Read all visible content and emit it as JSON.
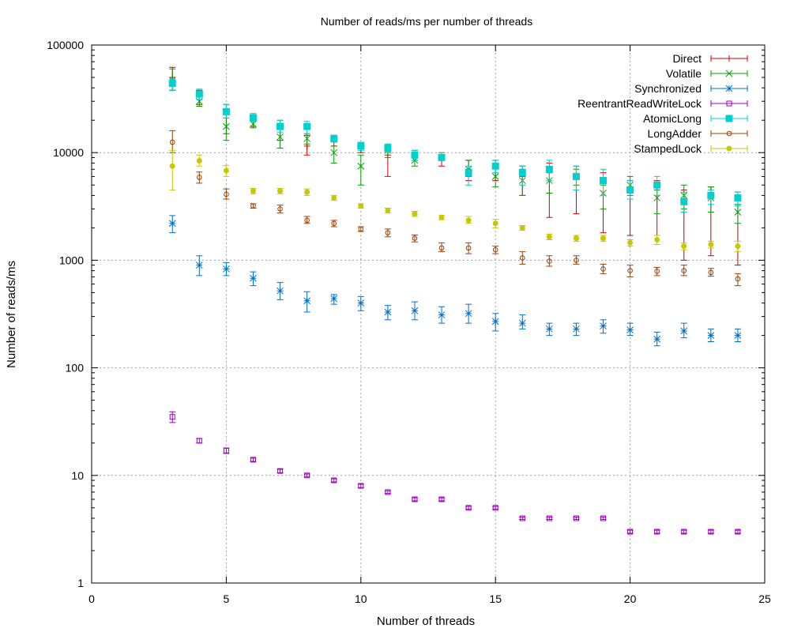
{
  "chart_data": {
    "type": "scatter",
    "title": "Number of reads/ms per number of threads",
    "xlabel": "Number of threads",
    "ylabel": "Number of reads/ms",
    "xlim": [
      0,
      25
    ],
    "ylim": [
      1,
      100000
    ],
    "yscale": "log",
    "grid": true,
    "legend_position": "top-right",
    "x_ticks": [
      "0",
      "5",
      "10",
      "15",
      "20",
      "25"
    ],
    "y_ticks": [
      "1",
      "10",
      "100",
      "1000",
      "10000",
      "100000"
    ],
    "x": [
      3,
      4,
      5,
      6,
      7,
      8,
      9,
      10,
      11,
      12,
      13,
      14,
      15,
      16,
      17,
      18,
      19,
      20,
      21,
      22,
      23,
      24
    ],
    "series": [
      {
        "name": "Direct",
        "color": "#d00000",
        "marker": "plus",
        "values": [
          50000,
          34000,
          24000,
          21000,
          17000,
          11500,
          13500,
          11000,
          9500,
          9000,
          9000,
          7000,
          7200,
          6000,
          6800,
          6000,
          5200,
          4600,
          4800,
          3600,
          4000,
          3800
        ],
        "err_low": [
          38000,
          28000,
          15000,
          17500,
          13000,
          9500,
          11500,
          10000,
          6000,
          8500,
          7500,
          5500,
          5500,
          4000,
          2500,
          2700,
          1800,
          1700,
          1700,
          1000,
          1100,
          900
        ],
        "err_high": [
          62000,
          38000,
          28000,
          23000,
          20000,
          14500,
          14500,
          12000,
          11000,
          10500,
          10000,
          8500,
          8500,
          7500,
          8000,
          7500,
          6500,
          5500,
          5500,
          4500,
          4800,
          4300
        ]
      },
      {
        "name": "Volatile",
        "color": "#00a000",
        "marker": "x",
        "values": [
          47000,
          30000,
          17500,
          18500,
          14000,
          13500,
          10000,
          7500,
          10500,
          8500,
          9000,
          7000,
          6000,
          5500,
          5500,
          6000,
          4200,
          5000,
          3800,
          4000,
          3800,
          2800
        ],
        "err_low": [
          38000,
          27000,
          13000,
          17000,
          11000,
          12000,
          8000,
          5000,
          9000,
          7500,
          8500,
          6000,
          4800,
          4000,
          4200,
          5000,
          3000,
          4000,
          2700,
          3000,
          2800,
          2200
        ],
        "err_high": [
          60000,
          33000,
          21000,
          20000,
          17000,
          15000,
          11500,
          9500,
          12000,
          9500,
          9500,
          8500,
          7500,
          7000,
          6500,
          7000,
          5000,
          6000,
          4500,
          5000,
          4800,
          3300
        ]
      },
      {
        "name": "Synchronized",
        "color": "#0070d0",
        "marker": "star",
        "values": [
          2200,
          900,
          830,
          680,
          520,
          420,
          440,
          400,
          330,
          340,
          310,
          320,
          270,
          260,
          230,
          230,
          245,
          225,
          185,
          220,
          200,
          200
        ],
        "err_low": [
          1800,
          720,
          720,
          580,
          430,
          330,
          390,
          340,
          280,
          280,
          260,
          260,
          220,
          230,
          200,
          200,
          210,
          200,
          160,
          190,
          175,
          175
        ],
        "err_high": [
          2600,
          1100,
          950,
          780,
          620,
          510,
          480,
          460,
          380,
          410,
          370,
          390,
          320,
          310,
          260,
          260,
          280,
          260,
          215,
          260,
          230,
          230
        ]
      },
      {
        "name": "ReentrantReadWriteLock",
        "color": "#a000c0",
        "marker": "square",
        "values": [
          35,
          21,
          17,
          14,
          11,
          10,
          9,
          8,
          7,
          6,
          6,
          5,
          5,
          4,
          4,
          4,
          4,
          3,
          3,
          3,
          3,
          3
        ],
        "err_low": [
          31,
          20,
          16,
          13.5,
          10.6,
          9.7,
          8.7,
          7.7,
          6.8,
          5.8,
          5.8,
          4.85,
          4.85,
          3.9,
          3.9,
          3.9,
          3.9,
          2.9,
          2.9,
          2.9,
          2.9,
          2.9
        ],
        "err_high": [
          39,
          22,
          18,
          14.5,
          11.4,
          10.3,
          9.3,
          8.3,
          7.2,
          6.2,
          6.2,
          5.15,
          5.15,
          4.1,
          4.1,
          4.1,
          4.1,
          3.1,
          3.1,
          3.1,
          3.1,
          3.1
        ]
      },
      {
        "name": "AtomicLong",
        "color": "#00d0d0",
        "marker": "filled-square",
        "values": [
          44000,
          35000,
          24000,
          21000,
          17500,
          17500,
          13500,
          11500,
          11000,
          9500,
          9000,
          6500,
          7500,
          6500,
          7000,
          6000,
          5500,
          4500,
          5000,
          3500,
          4000,
          3800
        ],
        "err_low": [
          38000,
          31000,
          21000,
          19500,
          15500,
          15000,
          12500,
          10500,
          10000,
          8500,
          8500,
          5000,
          6500,
          5000,
          5500,
          4500,
          4000,
          3700,
          4000,
          2800,
          3300,
          3200
        ],
        "err_high": [
          48000,
          39000,
          28000,
          23000,
          20000,
          19500,
          14500,
          12500,
          12000,
          10500,
          10000,
          7500,
          8500,
          7500,
          8500,
          7500,
          7000,
          5500,
          6000,
          4300,
          4500,
          4300
        ]
      },
      {
        "name": "LongAdder",
        "color": "#a04000",
        "marker": "circle",
        "values": [
          12500,
          5900,
          4100,
          3200,
          3000,
          2350,
          2200,
          1950,
          1800,
          1600,
          1300,
          1300,
          1250,
          1050,
          980,
          1000,
          830,
          800,
          790,
          800,
          770,
          670
        ],
        "err_low": [
          10000,
          5200,
          3700,
          3050,
          2750,
          2200,
          2050,
          1850,
          1650,
          1480,
          1200,
          1150,
          1150,
          920,
          880,
          920,
          750,
          700,
          720,
          720,
          710,
          580
        ],
        "err_high": [
          16000,
          6600,
          4600,
          3350,
          3250,
          2550,
          2350,
          2050,
          1950,
          1720,
          1450,
          1450,
          1350,
          1200,
          1100,
          1100,
          920,
          900,
          860,
          900,
          840,
          750
        ]
      },
      {
        "name": "StampedLock",
        "color": "#c8c800",
        "marker": "filled-circle",
        "values": [
          7500,
          8400,
          6800,
          4400,
          4400,
          4300,
          3800,
          3200,
          2900,
          2700,
          2500,
          2350,
          2200,
          2000,
          1650,
          1600,
          1600,
          1450,
          1550,
          1350,
          1400,
          1350
        ],
        "err_low": [
          4500,
          7500,
          6000,
          4150,
          4150,
          4000,
          3600,
          3050,
          2750,
          2550,
          2380,
          2200,
          2000,
          1900,
          1550,
          1500,
          1500,
          1350,
          1400,
          1250,
          1300,
          1200
        ],
        "err_high": [
          10500,
          9500,
          7600,
          4650,
          4650,
          4600,
          4000,
          3350,
          3050,
          2850,
          2620,
          2550,
          2400,
          2100,
          1750,
          1700,
          1700,
          1550,
          1700,
          1450,
          1500,
          1500
        ]
      }
    ]
  }
}
